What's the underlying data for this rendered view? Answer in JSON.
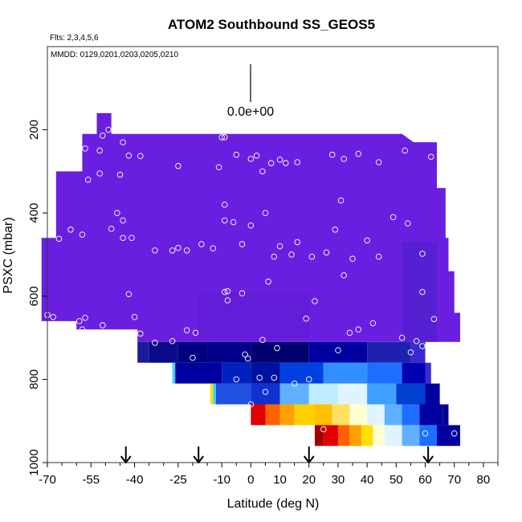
{
  "chart_data": {
    "type": "heatmap",
    "title": "ATOM2 Southbound SS_GEOS5",
    "flights_label": "Flts: 2,3,4,5,6",
    "dates_label": "MMDD: 0129,0201,0203,0205,0210",
    "scale_label": "0.0e+00",
    "xlabel": "Latitude (deg N)",
    "ylabel": "PSXC (mbar)",
    "xlim": [
      -70,
      85
    ],
    "ylim": [
      1000,
      0
    ],
    "x_ticks": [
      -70,
      -55,
      -40,
      -25,
      -10,
      0,
      10,
      20,
      30,
      40,
      50,
      60,
      70,
      80
    ],
    "x_tick_labels": [
      "-70",
      "-55",
      "-40",
      "-25",
      "-10",
      "0",
      "10",
      "20",
      "30",
      "40",
      "50",
      "60",
      "70",
      "80"
    ],
    "y_ticks": [
      200,
      400,
      600,
      800,
      1000
    ],
    "y_tick_labels": [
      "200",
      "400",
      "600",
      "800",
      "1000"
    ],
    "arrow_latitudes": [
      -43,
      -18,
      20,
      61
    ],
    "colors": {
      "background_field": "#6a1fe0",
      "dark_blue": "#00008b",
      "blue": "#1e6fff",
      "light": "#e0f4ff",
      "yellow": "#ffe000",
      "orange": "#ff8c00",
      "red": "#e00000",
      "dark_red": "#a00000"
    },
    "color_rows": [
      {
        "p_top": 710,
        "p_bot": 760,
        "segments": [
          {
            "x0": -39,
            "x1": -35,
            "color": "#1a1a9a"
          },
          {
            "x0": -35,
            "x1": -25,
            "color": "#0a0a8a"
          },
          {
            "x0": -25,
            "x1": -15,
            "color": "#000080"
          },
          {
            "x0": -15,
            "x1": 0,
            "color": "#00008b"
          },
          {
            "x0": 0,
            "x1": 20,
            "color": "#00006f"
          },
          {
            "x0": 20,
            "x1": 40,
            "color": "#0000a0"
          },
          {
            "x0": 40,
            "x1": 55,
            "color": "#2020b0"
          },
          {
            "x0": 55,
            "x1": 60,
            "color": "#3a2ad0"
          }
        ]
      },
      {
        "p_top": 760,
        "p_bot": 810,
        "segments": [
          {
            "x0": -27,
            "x1": -26,
            "color": "#40d0ff"
          },
          {
            "x0": -26,
            "x1": -10,
            "color": "#0000a0"
          },
          {
            "x0": -10,
            "x1": 0,
            "color": "#0020c0"
          },
          {
            "x0": 0,
            "x1": 10,
            "color": "#0010a0"
          },
          {
            "x0": 10,
            "x1": 25,
            "color": "#0040e0"
          },
          {
            "x0": 25,
            "x1": 40,
            "color": "#3090ff"
          },
          {
            "x0": 40,
            "x1": 52,
            "color": "#1e6fff"
          },
          {
            "x0": 52,
            "x1": 60,
            "color": "#0000b0"
          },
          {
            "x0": 60,
            "x1": 62,
            "color": "#3a2ad0"
          }
        ]
      },
      {
        "p_top": 810,
        "p_bot": 860,
        "segments": [
          {
            "x0": -14,
            "x1": -13,
            "color": "#ffe000"
          },
          {
            "x0": -13,
            "x1": -12,
            "color": "#40d0ff"
          },
          {
            "x0": -12,
            "x1": 0,
            "color": "#2050e0"
          },
          {
            "x0": 0,
            "x1": 10,
            "color": "#1030d0"
          },
          {
            "x0": 10,
            "x1": 20,
            "color": "#60b0ff"
          },
          {
            "x0": 20,
            "x1": 30,
            "color": "#c0ecff"
          },
          {
            "x0": 30,
            "x1": 40,
            "color": "#e0f4ff"
          },
          {
            "x0": 40,
            "x1": 50,
            "color": "#40a0ff"
          },
          {
            "x0": 50,
            "x1": 60,
            "color": "#0040d0"
          },
          {
            "x0": 60,
            "x1": 65,
            "color": "#0000a0"
          }
        ]
      },
      {
        "p_top": 860,
        "p_bot": 910,
        "segments": [
          {
            "x0": 0,
            "x1": 5,
            "color": "#e00000"
          },
          {
            "x0": 5,
            "x1": 10,
            "color": "#ff6000"
          },
          {
            "x0": 10,
            "x1": 15,
            "color": "#ffa000"
          },
          {
            "x0": 15,
            "x1": 22,
            "color": "#ffd000"
          },
          {
            "x0": 22,
            "x1": 28,
            "color": "#ffc000"
          },
          {
            "x0": 28,
            "x1": 34,
            "color": "#ffe060"
          },
          {
            "x0": 34,
            "x1": 40,
            "color": "#ffffd0"
          },
          {
            "x0": 40,
            "x1": 46,
            "color": "#e0f4ff"
          },
          {
            "x0": 46,
            "x1": 52,
            "color": "#60b0ff"
          },
          {
            "x0": 52,
            "x1": 58,
            "color": "#1e6fff"
          },
          {
            "x0": 58,
            "x1": 66,
            "color": "#0000a0"
          },
          {
            "x0": 66,
            "x1": 68,
            "color": "#00008b"
          }
        ]
      },
      {
        "p_top": 910,
        "p_bot": 960,
        "segments": [
          {
            "x0": 22,
            "x1": 25,
            "color": "#a00000"
          },
          {
            "x0": 25,
            "x1": 30,
            "color": "#e00000"
          },
          {
            "x0": 30,
            "x1": 34,
            "color": "#ff6000"
          },
          {
            "x0": 34,
            "x1": 38,
            "color": "#ffa000"
          },
          {
            "x0": 38,
            "x1": 42,
            "color": "#ffe000"
          },
          {
            "x0": 42,
            "x1": 46,
            "color": "#ffffd0"
          },
          {
            "x0": 46,
            "x1": 52,
            "color": "#e0f4ff"
          },
          {
            "x0": 52,
            "x1": 58,
            "color": "#60b0ff"
          },
          {
            "x0": 58,
            "x1": 64,
            "color": "#1e6fff"
          },
          {
            "x0": 64,
            "x1": 72,
            "color": "#0000a0"
          }
        ]
      }
    ],
    "points": [
      [
        -49,
        200
      ],
      [
        -51,
        214
      ],
      [
        -55,
        200
      ],
      [
        -43,
        200
      ],
      [
        -44,
        230
      ],
      [
        -57,
        245
      ],
      [
        -52,
        250
      ],
      [
        -42,
        262
      ],
      [
        -38,
        263
      ],
      [
        -25,
        287
      ],
      [
        -11,
        290
      ],
      [
        -9,
        218
      ],
      [
        -10,
        218
      ],
      [
        -5,
        260
      ],
      [
        0,
        270
      ],
      [
        2,
        262
      ],
      [
        4,
        300
      ],
      [
        7,
        280
      ],
      [
        10,
        272
      ],
      [
        12,
        280
      ],
      [
        16,
        278
      ],
      [
        28,
        260
      ],
      [
        32,
        270
      ],
      [
        37,
        258
      ],
      [
        44,
        278
      ],
      [
        53,
        250
      ],
      [
        62,
        265
      ],
      [
        -61,
        263
      ],
      [
        -62,
        262
      ],
      [
        -52,
        305
      ],
      [
        -45,
        308
      ],
      [
        -56,
        320
      ],
      [
        -46,
        400
      ],
      [
        -44,
        418
      ],
      [
        -58,
        452
      ],
      [
        -62,
        440
      ],
      [
        -66,
        462
      ],
      [
        -48,
        438
      ],
      [
        -44,
        460
      ],
      [
        -41,
        460
      ],
      [
        -33,
        490
      ],
      [
        -27,
        490
      ],
      [
        -25,
        484
      ],
      [
        -22,
        490
      ],
      [
        -17,
        475
      ],
      [
        -13,
        485
      ],
      [
        -9,
        380
      ],
      [
        -9,
        418
      ],
      [
        -6,
        422
      ],
      [
        -3,
        475
      ],
      [
        0,
        430
      ],
      [
        5,
        400
      ],
      [
        6,
        565
      ],
      [
        8,
        505
      ],
      [
        10,
        480
      ],
      [
        14,
        500
      ],
      [
        16,
        470
      ],
      [
        21,
        505
      ],
      [
        26,
        495
      ],
      [
        29,
        440
      ],
      [
        31,
        370
      ],
      [
        32,
        550
      ],
      [
        35,
        510
      ],
      [
        40,
        466
      ],
      [
        44,
        505
      ],
      [
        49,
        410
      ],
      [
        54,
        425
      ],
      [
        59,
        498
      ],
      [
        59,
        590
      ],
      [
        63,
        655
      ],
      [
        -59,
        660
      ],
      [
        -58,
        680
      ],
      [
        -57,
        652
      ],
      [
        -51,
        670
      ],
      [
        -38,
        690
      ],
      [
        -33,
        712
      ],
      [
        -27,
        708
      ],
      [
        -22,
        682
      ],
      [
        -19,
        688
      ],
      [
        -9,
        590
      ],
      [
        -8,
        588
      ],
      [
        -3,
        593
      ],
      [
        -8,
        610
      ],
      [
        -2,
        740
      ],
      [
        4,
        705
      ],
      [
        9,
        725
      ],
      [
        19,
        654
      ],
      [
        22,
        612
      ],
      [
        30,
        730
      ],
      [
        34,
        688
      ],
      [
        37,
        680
      ],
      [
        42,
        665
      ],
      [
        52,
        700
      ],
      [
        55,
        735
      ],
      [
        57,
        708
      ],
      [
        59,
        720
      ],
      [
        -70,
        645
      ],
      [
        -68,
        650
      ],
      [
        -42,
        690
      ],
      [
        -40,
        650
      ],
      [
        -42,
        595
      ],
      [
        -20,
        748
      ],
      [
        -5,
        800
      ],
      [
        0,
        860
      ],
      [
        5,
        830
      ],
      [
        15,
        810
      ],
      [
        20,
        800
      ],
      [
        25,
        920
      ],
      [
        70,
        930
      ],
      [
        60,
        930
      ],
      [
        -1,
        750
      ],
      [
        3,
        796
      ],
      [
        8,
        796
      ]
    ]
  }
}
